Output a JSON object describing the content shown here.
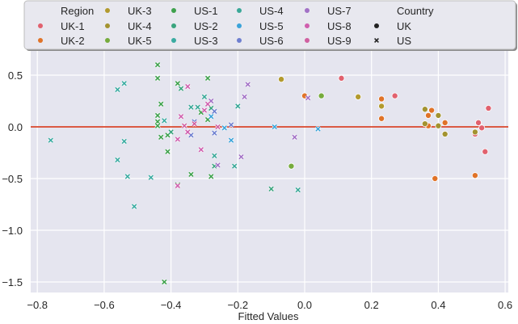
{
  "chart_data": {
    "type": "scatter",
    "title": "",
    "xlabel": "Fitted Values",
    "ylabel": "",
    "xlim": [
      -0.82,
      0.61
    ],
    "ylim": [
      -1.6,
      0.71
    ],
    "xticks": [
      -0.8,
      -0.6,
      -0.4,
      -0.2,
      0.0,
      0.2,
      0.4,
      0.6
    ],
    "xtick_labels": [
      "−0.8",
      "−0.6",
      "−0.4",
      "−0.2",
      "0.0",
      "0.2",
      "0.4",
      "0.6"
    ],
    "yticks": [
      0.5,
      0.0,
      -0.5,
      -1.0,
      -1.5
    ],
    "ytick_labels": [
      "0.5",
      "0.0",
      "−0.5",
      "−1.0",
      "−1.5"
    ],
    "grid": true,
    "background": "#e5e5ef",
    "reference_line": {
      "y": 0.0,
      "color": "#d9462b"
    },
    "legend": {
      "position": "top",
      "hue_title": "Region",
      "style_title": "Country",
      "hue_entries": [
        {
          "label": "UK-1",
          "color": "#e1616e"
        },
        {
          "label": "UK-2",
          "color": "#e07328"
        },
        {
          "label": "UK-3",
          "color": "#b29a2e"
        },
        {
          "label": "UK-4",
          "color": "#a39330"
        },
        {
          "label": "UK-5",
          "color": "#76ab3c"
        },
        {
          "label": "US-1",
          "color": "#3ea14c"
        },
        {
          "label": "US-2",
          "color": "#3aa47e"
        },
        {
          "label": "US-3",
          "color": "#3aaba1"
        },
        {
          "label": "US-4",
          "color": "#3aa898"
        },
        {
          "label": "US-5",
          "color": "#3aa3d9"
        },
        {
          "label": "US-6",
          "color": "#6e7fd0"
        },
        {
          "label": "US-7",
          "color": "#a271c6"
        },
        {
          "label": "US-8",
          "color": "#d05fae"
        },
        {
          "label": "US-9",
          "color": "#d060a0"
        }
      ],
      "style_entries": [
        {
          "label": "UK",
          "marker": "circle"
        },
        {
          "label": "US",
          "marker": "x"
        }
      ]
    },
    "series": [
      {
        "name": "UK-1",
        "country": "UK",
        "marker": "circle",
        "color": "#e1616e",
        "points": [
          [
            0.11,
            0.47
          ],
          [
            0.27,
            0.3
          ],
          [
            0.55,
            0.18
          ],
          [
            0.52,
            0.04
          ],
          [
            0.53,
            -0.01
          ],
          [
            0.51,
            -0.07
          ],
          [
            0.54,
            -0.24
          ]
        ]
      },
      {
        "name": "UK-2",
        "country": "UK",
        "marker": "circle",
        "color": "#e07328",
        "points": [
          [
            0.0,
            0.3
          ],
          [
            0.23,
            0.27
          ],
          [
            0.23,
            0.08
          ],
          [
            0.38,
            0.16
          ],
          [
            0.37,
            0.11
          ],
          [
            0.42,
            0.04
          ],
          [
            0.37,
            0.01
          ],
          [
            0.39,
            -0.5
          ],
          [
            0.51,
            -0.47
          ]
        ]
      },
      {
        "name": "UK-3",
        "country": "UK",
        "marker": "circle",
        "color": "#b29a2e",
        "points": [
          [
            -0.07,
            0.46
          ],
          [
            0.16,
            0.29
          ],
          [
            0.23,
            0.2
          ]
        ]
      },
      {
        "name": "UK-4",
        "country": "UK",
        "marker": "circle",
        "color": "#a39330",
        "points": [
          [
            0.36,
            0.17
          ],
          [
            0.4,
            0.11
          ],
          [
            0.36,
            0.03
          ],
          [
            0.4,
            0.01
          ],
          [
            0.42,
            -0.07
          ],
          [
            0.51,
            -0.05
          ]
        ]
      },
      {
        "name": "UK-5",
        "country": "UK",
        "marker": "circle",
        "color": "#76ab3c",
        "points": [
          [
            0.05,
            0.3
          ],
          [
            -0.04,
            -0.38
          ]
        ]
      },
      {
        "name": "US-1",
        "country": "US",
        "marker": "x",
        "color": "#3ea14c",
        "points": [
          [
            -0.44,
            0.6
          ],
          [
            -0.44,
            0.47
          ],
          [
            -0.29,
            0.47
          ],
          [
            -0.38,
            0.42
          ],
          [
            -0.43,
            0.22
          ],
          [
            -0.44,
            0.11
          ],
          [
            -0.44,
            0.05
          ],
          [
            -0.44,
            0.01
          ],
          [
            -0.43,
            -0.1
          ],
          [
            -0.41,
            -0.08
          ],
          [
            -0.31,
            0.14
          ],
          [
            -0.29,
            0.07
          ],
          [
            -0.41,
            -0.24
          ],
          [
            -0.34,
            -0.46
          ],
          [
            -0.28,
            -0.48
          ],
          [
            -0.42,
            -1.5
          ],
          [
            -0.38,
            -0.56
          ]
        ]
      },
      {
        "name": "US-2",
        "country": "US",
        "marker": "x",
        "color": "#3aa47e",
        "points": [
          [
            -0.37,
            0.37
          ],
          [
            -0.28,
            0.18
          ],
          [
            -0.4,
            -0.05
          ],
          [
            -0.27,
            -0.38
          ],
          [
            -0.1,
            -0.6
          ]
        ]
      },
      {
        "name": "US-3",
        "country": "US",
        "marker": "x",
        "color": "#3aaba1",
        "points": [
          [
            -0.76,
            -0.13
          ],
          [
            -0.56,
            0.36
          ],
          [
            -0.54,
            0.42
          ],
          [
            -0.54,
            -0.14
          ],
          [
            -0.56,
            -0.32
          ],
          [
            -0.53,
            -0.48
          ],
          [
            -0.46,
            -0.49
          ],
          [
            -0.51,
            -0.77
          ],
          [
            -0.42,
            0.06
          ]
        ]
      },
      {
        "name": "US-4",
        "country": "US",
        "marker": "x",
        "color": "#3aa898",
        "points": [
          [
            -0.3,
            0.29
          ],
          [
            -0.34,
            0.19
          ],
          [
            -0.32,
            0.19
          ],
          [
            -0.27,
            -0.28
          ],
          [
            -0.21,
            -0.38
          ],
          [
            -0.02,
            -0.61
          ],
          [
            -0.2,
            0.2
          ]
        ]
      },
      {
        "name": "US-5",
        "country": "US",
        "marker": "x",
        "color": "#3aa3d9",
        "points": [
          [
            -0.28,
            0.1
          ],
          [
            -0.24,
            -0.01
          ],
          [
            -0.22,
            -0.13
          ],
          [
            -0.09,
            0.0
          ],
          [
            0.04,
            -0.02
          ]
        ]
      },
      {
        "name": "US-6",
        "country": "US",
        "marker": "x",
        "color": "#6e7fd0",
        "points": [
          [
            -0.27,
            0.15
          ],
          [
            -0.33,
            0.05
          ],
          [
            -0.34,
            -0.08
          ],
          [
            -0.22,
            0.02
          ],
          [
            -0.27,
            -0.06
          ]
        ]
      },
      {
        "name": "US-7",
        "country": "US",
        "marker": "x",
        "color": "#a271c6",
        "points": [
          [
            -0.17,
            0.41
          ],
          [
            -0.18,
            0.29
          ],
          [
            -0.28,
            0.25
          ],
          [
            0.01,
            0.28
          ],
          [
            -0.03,
            -0.1
          ],
          [
            -0.19,
            -0.29
          ],
          [
            -0.26,
            -0.37
          ]
        ]
      },
      {
        "name": "US-8",
        "country": "US",
        "marker": "x",
        "color": "#d05fae",
        "points": [
          [
            -0.35,
            0.39
          ],
          [
            -0.29,
            0.22
          ],
          [
            -0.37,
            0.1
          ],
          [
            -0.3,
            0.16
          ],
          [
            -0.35,
            -0.05
          ],
          [
            -0.38,
            -0.12
          ],
          [
            -0.31,
            -0.22
          ],
          [
            -0.38,
            -0.57
          ]
        ]
      },
      {
        "name": "US-9",
        "country": "US",
        "marker": "x",
        "color": "#d060a0",
        "points": [
          [
            -0.33,
            0.03
          ],
          [
            -0.36,
            0.01
          ],
          [
            -0.26,
            0.0
          ]
        ]
      }
    ]
  }
}
